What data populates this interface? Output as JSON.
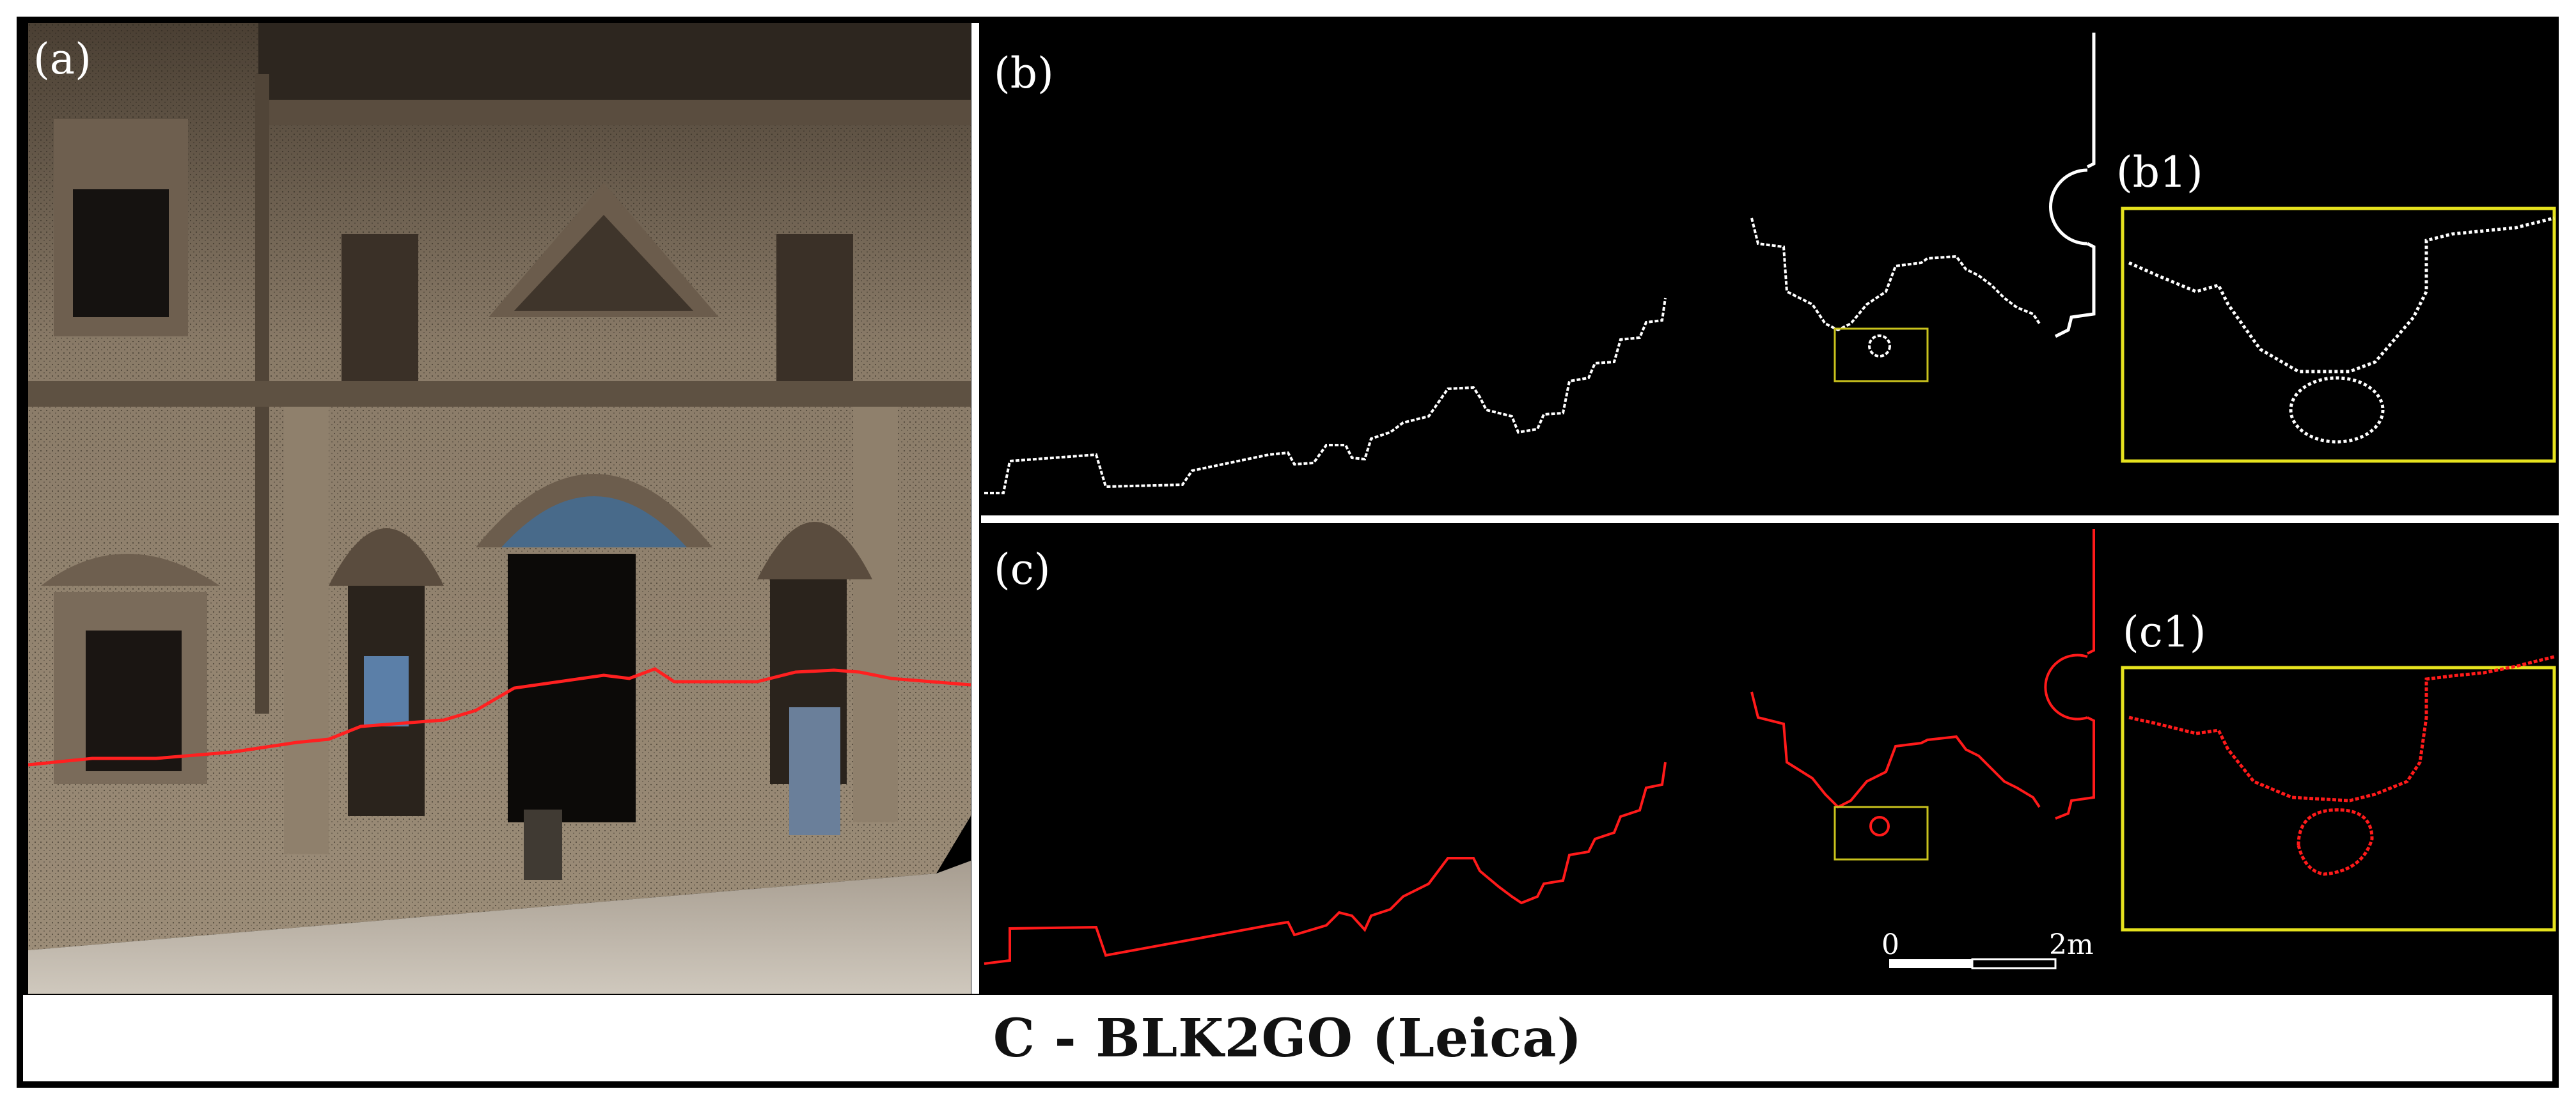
{
  "panels": {
    "a": "(a)",
    "b": "(b)",
    "b1": "(b1)",
    "c": "(c)",
    "c1": "(c1)"
  },
  "scale_bar": {
    "start": "0",
    "end": "2m"
  },
  "caption": "C - BLK2GO (Leica)",
  "colors": {
    "section_line": "#ff2020",
    "inset_frame": "#e6e21e",
    "points": "#ffffff",
    "background": "#000000"
  }
}
